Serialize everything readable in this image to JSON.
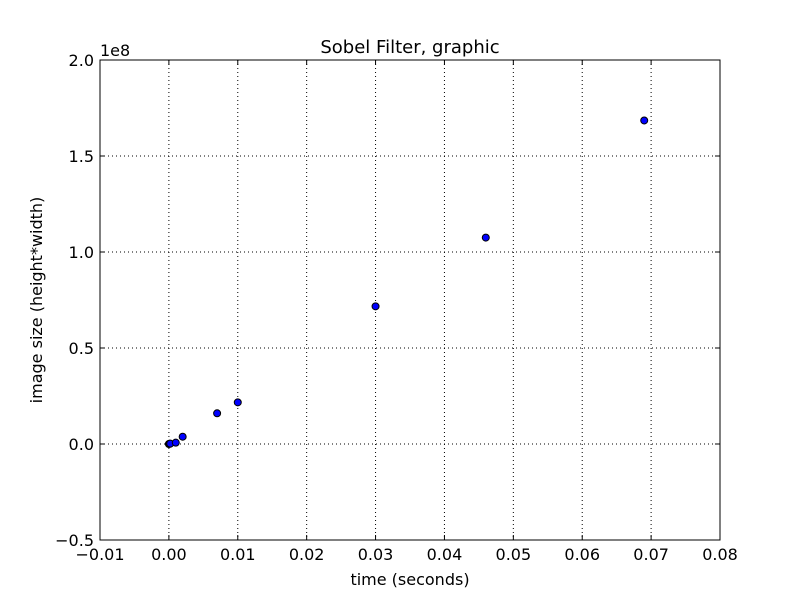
{
  "chart_data": {
    "type": "scatter",
    "title": "Sobel Filter, graphic",
    "xlabel": "time (seconds)",
    "ylabel": "image size (height*width)",
    "y_offset_label": "1e8",
    "xlim": [
      -0.01,
      0.08
    ],
    "ylim": [
      -0.5,
      2.0
    ],
    "x_ticks": [
      -0.01,
      0.0,
      0.01,
      0.02,
      0.03,
      0.04,
      0.05,
      0.06,
      0.07,
      0.08
    ],
    "x_tick_labels": [
      "−0.01",
      "0.00",
      "0.01",
      "0.02",
      "0.03",
      "0.04",
      "0.05",
      "0.06",
      "0.07",
      "0.08"
    ],
    "y_ticks": [
      -0.5,
      0.0,
      0.5,
      1.0,
      1.5,
      2.0
    ],
    "y_tick_labels": [
      "−0.5",
      "0.0",
      "0.5",
      "1.0",
      "1.5",
      "2.0"
    ],
    "grid": true,
    "marker_color": "#0000ff",
    "series": [
      {
        "x": [
          0.0,
          0.0001,
          0.0002,
          0.001,
          0.002,
          0.007,
          0.01,
          0.03,
          0.046,
          0.069
        ],
        "y": [
          0.0,
          0.001,
          0.002,
          0.007,
          0.038,
          0.16,
          0.217,
          0.717,
          1.075,
          1.685
        ]
      }
    ]
  }
}
